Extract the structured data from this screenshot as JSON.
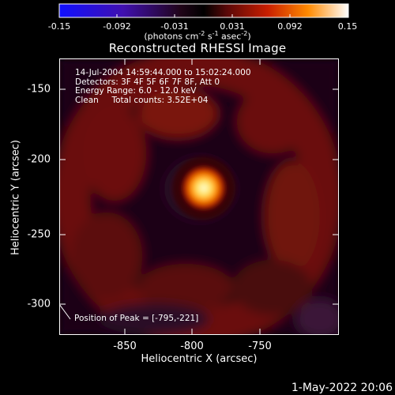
{
  "colorbar": {
    "ticks": [
      "-0.15",
      "-0.092",
      "-0.031",
      "0.031",
      "0.092",
      "0.15"
    ],
    "units_main": "(photons cm",
    "units_exp1": "-2",
    "units_mid1": " s",
    "units_exp2": "-1",
    "units_mid2": " asec",
    "units_exp3": "-2",
    "units_end": ")"
  },
  "title": "Reconstructed RHESSI Image",
  "info": {
    "line1": "14-Jul-2004 14:59:44.000 to 15:02:24.000",
    "line2": "Detectors: 3F 4F 5F 6F 7F 8F, Att 0",
    "line3": "Energy Range: 6.0 - 12.0 keV",
    "line4": "Clean     Total counts: 3.52E+04"
  },
  "peak_label": "Position of Peak = [-795,-221]",
  "axes": {
    "xlabel": "Heliocentric X (arcsec)",
    "ylabel": "Heliocentric Y (arcsec)",
    "xticks": [
      "-850",
      "-800",
      "-750"
    ],
    "yticks": [
      "-150",
      "-200",
      "-250",
      "-300"
    ]
  },
  "footer": "1-May-2022 20:06",
  "colors": {
    "background": "#000000",
    "foreground": "#ffffff",
    "source_core": "#ffffa0",
    "emission": "#8a1a0a"
  }
}
